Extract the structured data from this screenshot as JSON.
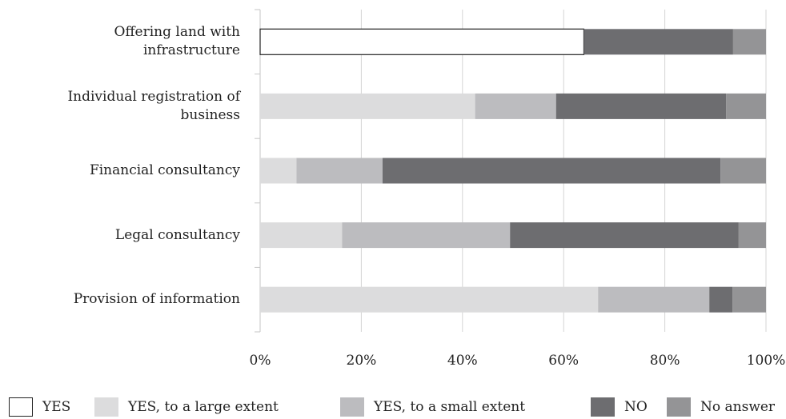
{
  "chart_data": {
    "type": "bar",
    "orientation": "horizontal",
    "stacked": true,
    "categories": [
      [
        "Offering land with",
        "infrastructure"
      ],
      [
        "Individual registration of",
        "business"
      ],
      [
        "Financial consultancy"
      ],
      [
        "Legal consultancy"
      ],
      [
        "Provision of information"
      ]
    ],
    "series": [
      {
        "name": "YES",
        "color": "#ffffff",
        "values": [
          64,
          0,
          0,
          0,
          0
        ]
      },
      {
        "name": "YES, to a large extent",
        "color": "#dcdcdd",
        "values": [
          0,
          42.5,
          7.2,
          16.2,
          66.8
        ]
      },
      {
        "name": "YES, to a small extent",
        "color": "#bcbcbf",
        "values": [
          0,
          16,
          17,
          33.2,
          22
        ]
      },
      {
        "name": "NO",
        "color": "#6d6d70",
        "values": [
          29.5,
          33.6,
          66.8,
          45.2,
          4.6
        ]
      },
      {
        "name": "No answer",
        "color": "#949496",
        "values": [
          6.5,
          7.9,
          9,
          5.4,
          6.6
        ]
      }
    ],
    "xlim": [
      0,
      100
    ],
    "xticks": [
      "0%",
      "20%",
      "40%",
      "60%",
      "80%",
      "100%"
    ],
    "grid": true,
    "legend_position": "bottom"
  }
}
